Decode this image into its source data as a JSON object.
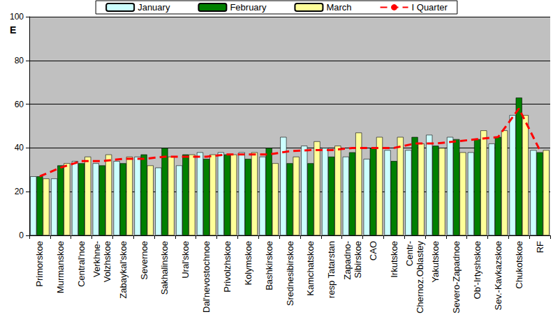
{
  "chart_data": {
    "type": "bar",
    "ylabel": "E",
    "categories": [
      "Primorskoe",
      "Murmanskoe",
      "Central'noe",
      "Verkhne-\nVolzhskoe",
      "Zabaykal'skoe",
      "Severnoe",
      "Sakhalinskoe",
      "Ural'skoe",
      "Dal'nevostochnoe",
      "Privolzhskoe",
      "Kolymskoe",
      "Bashkirskoe",
      "Srednesibirskoe",
      "Kamchatskoe",
      "resp Tatarstan",
      "Zapadno-\nSibirskoe",
      "CAO",
      "Irkutskoe",
      "Centr-\nChernoz.Oblastey",
      "Yakutskoe",
      "Severo-Zapadnoe",
      "Ob'-Irtyshskoe",
      "Sev.-Kavkazskoe",
      "Chukotskoe",
      "RF"
    ],
    "series": [
      {
        "name": "January",
        "color": "#ccffff",
        "values": [
          27,
          26,
          34,
          33,
          34,
          36,
          31,
          32,
          38,
          38,
          38,
          36,
          45,
          41,
          40,
          36,
          35,
          39,
          39,
          46,
          45,
          38,
          42,
          55,
          39
        ]
      },
      {
        "name": "February",
        "color": "#008000",
        "values": [
          27,
          32,
          33,
          32,
          33,
          37,
          40,
          37,
          35,
          37,
          35,
          40,
          33,
          33,
          36,
          38,
          40,
          34,
          45,
          41,
          44,
          44,
          45,
          63,
          38
        ]
      },
      {
        "name": "March",
        "color": "#ffff99",
        "values": [
          26,
          33,
          36,
          37,
          36,
          32,
          36,
          37,
          37,
          37,
          38,
          33,
          36,
          43,
          41,
          47,
          45,
          45,
          42,
          40,
          38,
          48,
          48,
          55,
          39
        ]
      },
      {
        "name": "I Quarter",
        "type": "line",
        "line_style": "dashed",
        "color": "#ff0000",
        "values": [
          27,
          31,
          34,
          34,
          35,
          35,
          36,
          36,
          36,
          37,
          37,
          37,
          38.5,
          39,
          39,
          40,
          40,
          40,
          42,
          42,
          43,
          44,
          45,
          58,
          39
        ]
      }
    ],
    "ylim": [
      0,
      100
    ],
    "yticks": [
      0,
      20,
      40,
      60,
      80,
      100
    ],
    "grid": true,
    "legend": "top"
  }
}
